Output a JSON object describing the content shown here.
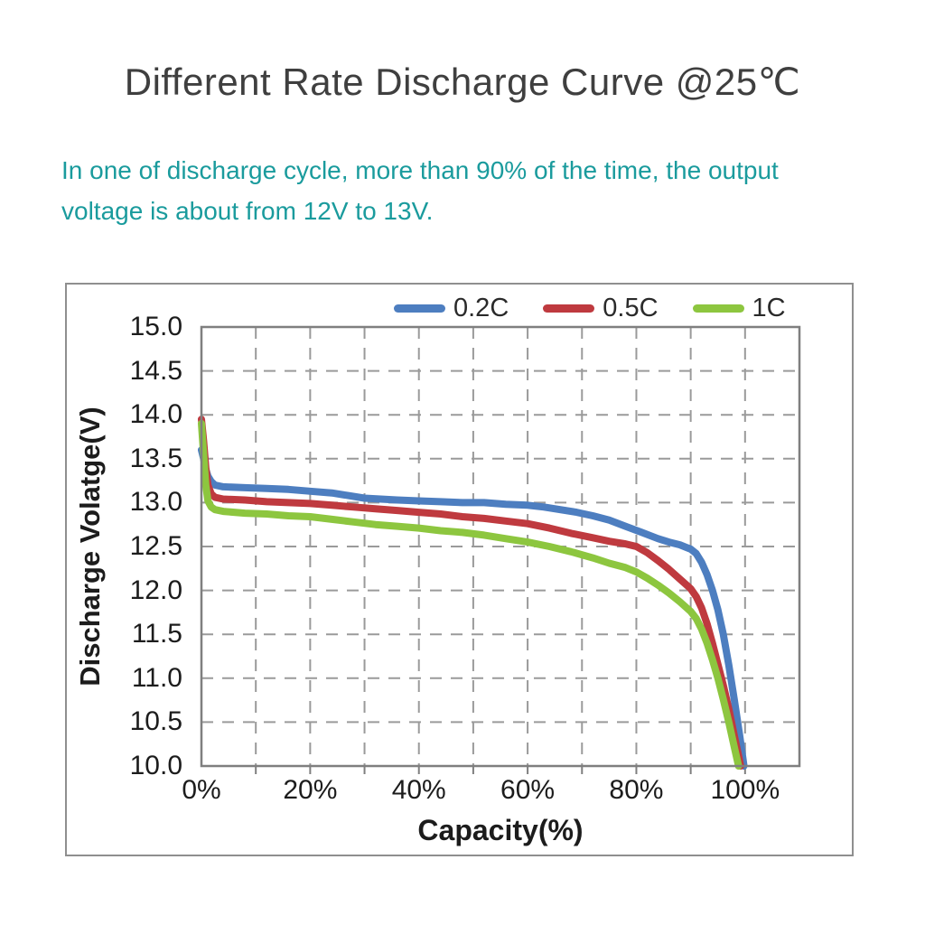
{
  "page": {
    "title": "Different Rate Discharge Curve @25℃",
    "subtitle_lines": [
      "In one of discharge cycle, more than 90% of the time, the output",
      "voltage is about from 12V to 13V."
    ],
    "subtitle_color": "#1a9b9d",
    "title_color": "#3f3f3f"
  },
  "chart_data": {
    "type": "line",
    "title": "Different Rate Discharge Curve @25℃",
    "xlabel": "Capacity(%)",
    "ylabel": "Discharge Volatge(V)",
    "xlim": [
      0,
      110
    ],
    "ylim": [
      10,
      15
    ],
    "grid": {
      "on": true,
      "x_step": 10,
      "y_step": 0.5,
      "style": "dashed",
      "color": "#9a9a9a"
    },
    "border_color": "#7f7f7f",
    "legend": {
      "position": "top-right"
    },
    "x_ticks": [
      {
        "value": 0,
        "label": "0%"
      },
      {
        "value": 20,
        "label": "20%"
      },
      {
        "value": 40,
        "label": "40%"
      },
      {
        "value": 60,
        "label": "60%"
      },
      {
        "value": 80,
        "label": "80%"
      },
      {
        "value": 100,
        "label": "100%"
      }
    ],
    "y_ticks": [
      {
        "value": 15.0,
        "label": "15.0"
      },
      {
        "value": 14.5,
        "label": "14.5"
      },
      {
        "value": 14.0,
        "label": "14.0"
      },
      {
        "value": 13.5,
        "label": "13.5"
      },
      {
        "value": 13.0,
        "label": "13.0"
      },
      {
        "value": 12.5,
        "label": "12.5"
      },
      {
        "value": 12.0,
        "label": "12.0"
      },
      {
        "value": 11.5,
        "label": "11.5"
      },
      {
        "value": 11.0,
        "label": "11.0"
      },
      {
        "value": 10.5,
        "label": "10.5"
      },
      {
        "value": 10.0,
        "label": "10.0"
      }
    ],
    "series": [
      {
        "name": "0.2C",
        "color": "#4d7ec0",
        "points": [
          [
            0,
            13.6
          ],
          [
            0.4,
            13.5
          ],
          [
            0.8,
            13.38
          ],
          [
            1.2,
            13.3
          ],
          [
            1.8,
            13.24
          ],
          [
            2.5,
            13.2
          ],
          [
            4,
            13.18
          ],
          [
            8,
            13.17
          ],
          [
            12,
            13.16
          ],
          [
            16,
            13.15
          ],
          [
            20,
            13.13
          ],
          [
            24,
            13.11
          ],
          [
            27,
            13.08
          ],
          [
            30,
            13.05
          ],
          [
            33,
            13.04
          ],
          [
            36,
            13.03
          ],
          [
            40,
            13.02
          ],
          [
            44,
            13.01
          ],
          [
            48,
            13.0
          ],
          [
            52,
            13.0
          ],
          [
            56,
            12.98
          ],
          [
            60,
            12.97
          ],
          [
            63,
            12.95
          ],
          [
            66,
            12.92
          ],
          [
            69,
            12.89
          ],
          [
            72,
            12.85
          ],
          [
            75,
            12.8
          ],
          [
            78,
            12.73
          ],
          [
            81,
            12.66
          ],
          [
            84,
            12.59
          ],
          [
            86,
            12.55
          ],
          [
            88,
            12.52
          ],
          [
            90,
            12.47
          ],
          [
            91,
            12.42
          ],
          [
            92,
            12.32
          ],
          [
            93,
            12.18
          ],
          [
            94,
            12.0
          ],
          [
            95,
            11.78
          ],
          [
            96,
            11.5
          ],
          [
            97,
            11.15
          ],
          [
            98,
            10.76
          ],
          [
            99,
            10.35
          ],
          [
            99.8,
            10.0
          ]
        ]
      },
      {
        "name": "0.5C",
        "color": "#bf3a3f",
        "points": [
          [
            0,
            13.95
          ],
          [
            0.4,
            13.7
          ],
          [
            0.8,
            13.4
          ],
          [
            1.2,
            13.2
          ],
          [
            1.8,
            13.1
          ],
          [
            2.5,
            13.06
          ],
          [
            4,
            13.04
          ],
          [
            8,
            13.03
          ],
          [
            12,
            13.01
          ],
          [
            16,
            13.0
          ],
          [
            20,
            12.99
          ],
          [
            24,
            12.97
          ],
          [
            28,
            12.95
          ],
          [
            32,
            12.93
          ],
          [
            36,
            12.91
          ],
          [
            40,
            12.89
          ],
          [
            44,
            12.87
          ],
          [
            48,
            12.84
          ],
          [
            52,
            12.82
          ],
          [
            56,
            12.79
          ],
          [
            60,
            12.76
          ],
          [
            64,
            12.71
          ],
          [
            68,
            12.65
          ],
          [
            72,
            12.6
          ],
          [
            75,
            12.56
          ],
          [
            78,
            12.53
          ],
          [
            80,
            12.5
          ],
          [
            82,
            12.43
          ],
          [
            84,
            12.34
          ],
          [
            86,
            12.24
          ],
          [
            88,
            12.13
          ],
          [
            90,
            12.02
          ],
          [
            91,
            11.93
          ],
          [
            92,
            11.8
          ],
          [
            93,
            11.62
          ],
          [
            94,
            11.4
          ],
          [
            95,
            11.16
          ],
          [
            96,
            10.92
          ],
          [
            97,
            10.65
          ],
          [
            98,
            10.35
          ],
          [
            99.2,
            10.0
          ]
        ]
      },
      {
        "name": "1C",
        "color": "#8dc63f",
        "points": [
          [
            0,
            13.9
          ],
          [
            0.4,
            13.55
          ],
          [
            0.8,
            13.2
          ],
          [
            1.2,
            13.02
          ],
          [
            1.8,
            12.95
          ],
          [
            2.5,
            12.92
          ],
          [
            4,
            12.9
          ],
          [
            8,
            12.88
          ],
          [
            12,
            12.87
          ],
          [
            16,
            12.85
          ],
          [
            20,
            12.84
          ],
          [
            24,
            12.81
          ],
          [
            28,
            12.78
          ],
          [
            32,
            12.75
          ],
          [
            36,
            12.73
          ],
          [
            40,
            12.71
          ],
          [
            44,
            12.68
          ],
          [
            48,
            12.66
          ],
          [
            52,
            12.63
          ],
          [
            56,
            12.59
          ],
          [
            60,
            12.55
          ],
          [
            64,
            12.5
          ],
          [
            68,
            12.44
          ],
          [
            72,
            12.37
          ],
          [
            75,
            12.31
          ],
          [
            78,
            12.26
          ],
          [
            80,
            12.21
          ],
          [
            82,
            12.14
          ],
          [
            84,
            12.06
          ],
          [
            86,
            11.97
          ],
          [
            88,
            11.87
          ],
          [
            90,
            11.76
          ],
          [
            91,
            11.68
          ],
          [
            92,
            11.56
          ],
          [
            93,
            11.4
          ],
          [
            94,
            11.21
          ],
          [
            95,
            11.0
          ],
          [
            96,
            10.76
          ],
          [
            97,
            10.5
          ],
          [
            98,
            10.22
          ],
          [
            98.8,
            10.0
          ]
        ]
      }
    ]
  }
}
